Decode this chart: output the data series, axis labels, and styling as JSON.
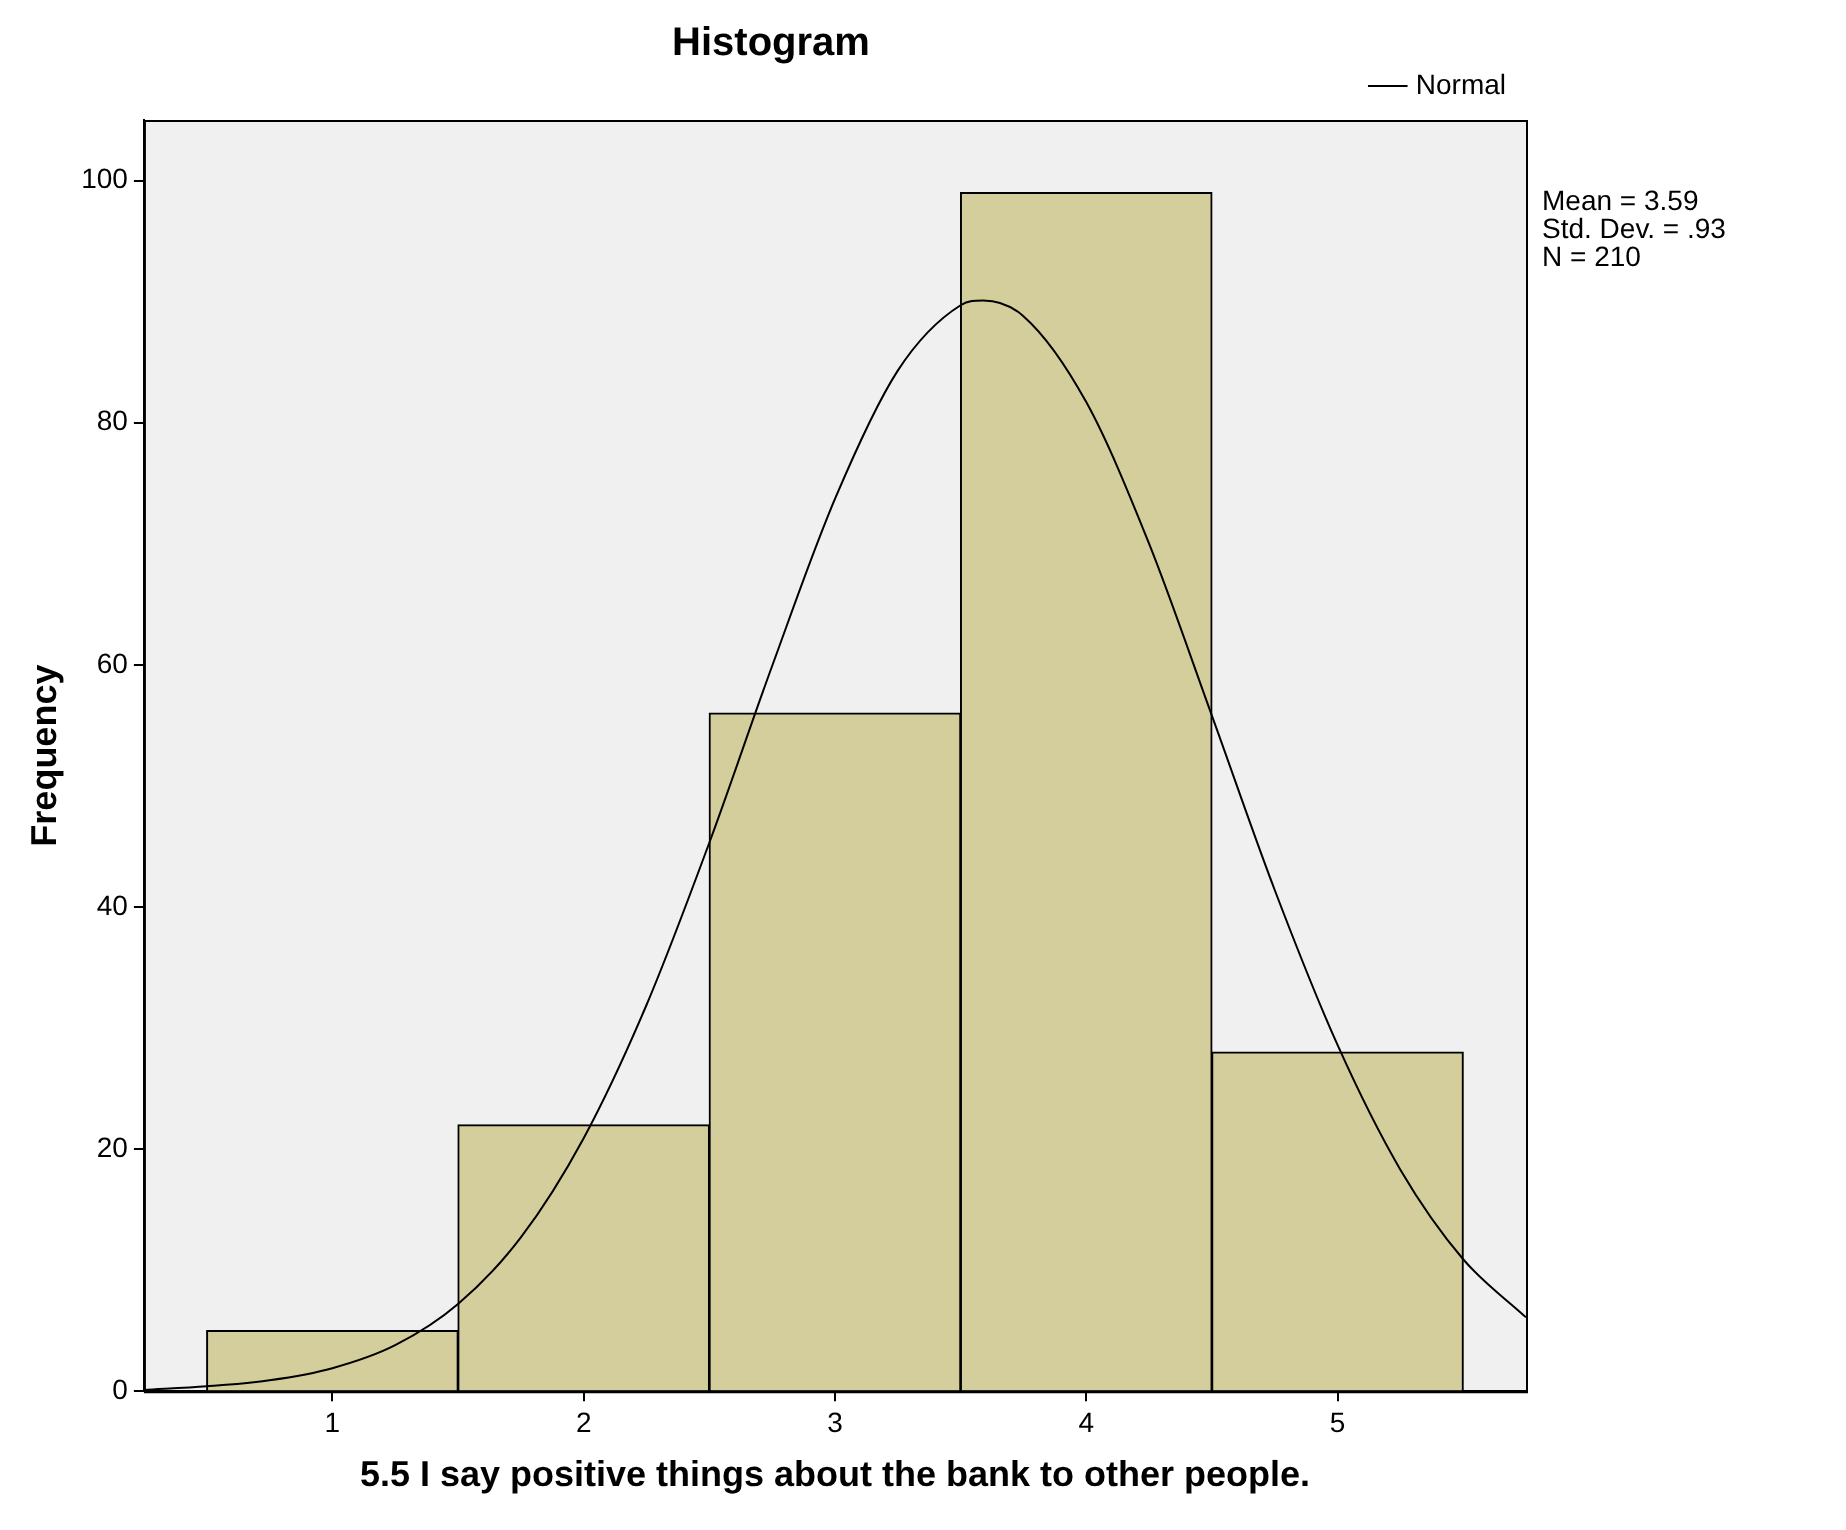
{
  "chart_data": {
    "type": "histogram",
    "title": "Histogram",
    "xlabel": "5.5 I say positive things about the bank to other people.",
    "ylabel": "Frequency",
    "bins": [
      0.5,
      1.5,
      2.5,
      3.5,
      4.5,
      5.5
    ],
    "series": [
      {
        "type": "histogram",
        "color": "#d3ce9b",
        "values": [
          5,
          22,
          56,
          99,
          28
        ]
      },
      {
        "type": "line",
        "name": "Normal",
        "color": "#000000",
        "x": [
          0.25,
          0.5,
          0.75,
          1,
          1.25,
          1.5,
          1.75,
          2,
          2.25,
          2.5,
          2.75,
          3,
          3.25,
          3.5,
          3.59,
          3.75,
          4,
          4.25,
          4.5,
          4.75,
          5,
          5.25,
          5.5,
          5.75
        ],
        "values": [
          0.1,
          0.4,
          0.9,
          1.9,
          3.8,
          7.2,
          12.7,
          20.9,
          31.9,
          45.3,
          59.9,
          73.7,
          84.3,
          89.7,
          90.1,
          88.8,
          81.7,
          70,
          55.8,
          41.4,
          28.6,
          18.3,
          10.9,
          6.1
        ]
      }
    ],
    "xlim": [
      0.25,
      5.75
    ],
    "xticks": [
      1,
      2,
      3,
      4,
      5
    ],
    "ylim": [
      0,
      105
    ],
    "yticks": [
      0,
      20,
      40,
      60,
      80,
      100
    ],
    "grid": false,
    "legend": "top right",
    "marker": "none",
    "line_style": "solid",
    "annotations": [
      "Mean = 3.59",
      "Std. Dev. = .93",
      "N = 210"
    ]
  }
}
